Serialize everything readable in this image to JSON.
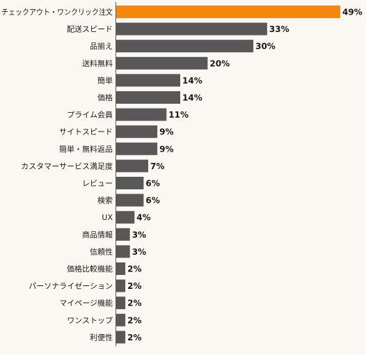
{
  "chart_data": {
    "type": "bar",
    "orientation": "horizontal",
    "categories": [
      "チェックアウト・ワンクリック注文",
      "配送スピード",
      "品揃え",
      "送料無料",
      "簡単",
      "価格",
      "プライム会員",
      "サイトスピード",
      "簡単・無料返品",
      "カスタマーサービス満足度",
      "レビュー",
      "検索",
      "UX",
      "商品情報",
      "信頼性",
      "価格比較機能",
      "パーソナライゼーション",
      "マイページ機能",
      "ワンストップ",
      "利便性"
    ],
    "values": [
      49,
      33,
      30,
      20,
      14,
      14,
      11,
      9,
      9,
      7,
      6,
      6,
      4,
      3,
      3,
      2,
      2,
      2,
      2,
      2
    ],
    "value_labels": [
      "49%",
      "33%",
      "30%",
      "20%",
      "14%",
      "14%",
      "11%",
      "9%",
      "9%",
      "7%",
      "6%",
      "6%",
      "4%",
      "3%",
      "3%",
      "2%",
      "2%",
      "2%",
      "2%",
      "2%"
    ],
    "highlight_index": 0,
    "colors": {
      "highlight": "#f6880f",
      "bar": "#595757",
      "axis": "#595757",
      "text": "#1a1a1a",
      "background": "#fbf7f3"
    },
    "xlim": [
      0,
      50
    ],
    "grid": false,
    "legend": "none"
  }
}
